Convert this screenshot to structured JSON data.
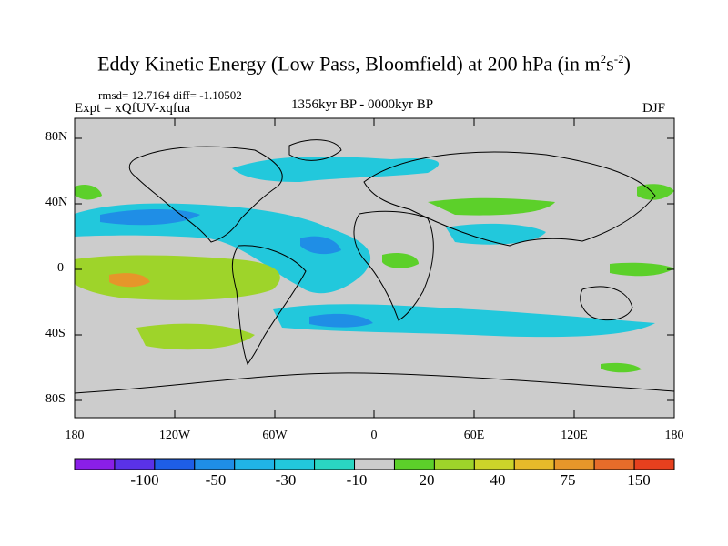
{
  "title": {
    "main": "Eddy Kinetic Energy (Low Pass, Bloomfield) at 200 hPa (in m",
    "sup1": "2",
    "mid": "s",
    "sup2": "-2",
    "end": ")"
  },
  "subtitle": {
    "stats": "rmsd= 12.7164  diff= -1.10502",
    "expt": "Expt = xQfUV-xqfua",
    "period": "1356kyr BP - 0000kyr BP",
    "season": "DJF"
  },
  "axes": {
    "y_ticks": [
      "80N",
      "40N",
      "0",
      "40S",
      "80S"
    ],
    "x_ticks": [
      "180",
      "120W",
      "60W",
      "0",
      "60E",
      "120E",
      "180"
    ]
  },
  "colorbar": {
    "labels": [
      "-100",
      "-50",
      "-30",
      "-10",
      "20",
      "40",
      "75",
      "150"
    ],
    "colors": [
      "#8a1fe8",
      "#5a32e8",
      "#1e5ee6",
      "#1f8ee6",
      "#20b4e6",
      "#22c8dc",
      "#2ad6c2",
      "#cccccc",
      "#5cd02a",
      "#9ed42a",
      "#ccd42a",
      "#e6ba2a",
      "#e6962a",
      "#e66c2a",
      "#e6401e"
    ]
  },
  "map": {
    "background": "#cccccc",
    "region": "global",
    "projection": "cylindrical-equidistant"
  }
}
